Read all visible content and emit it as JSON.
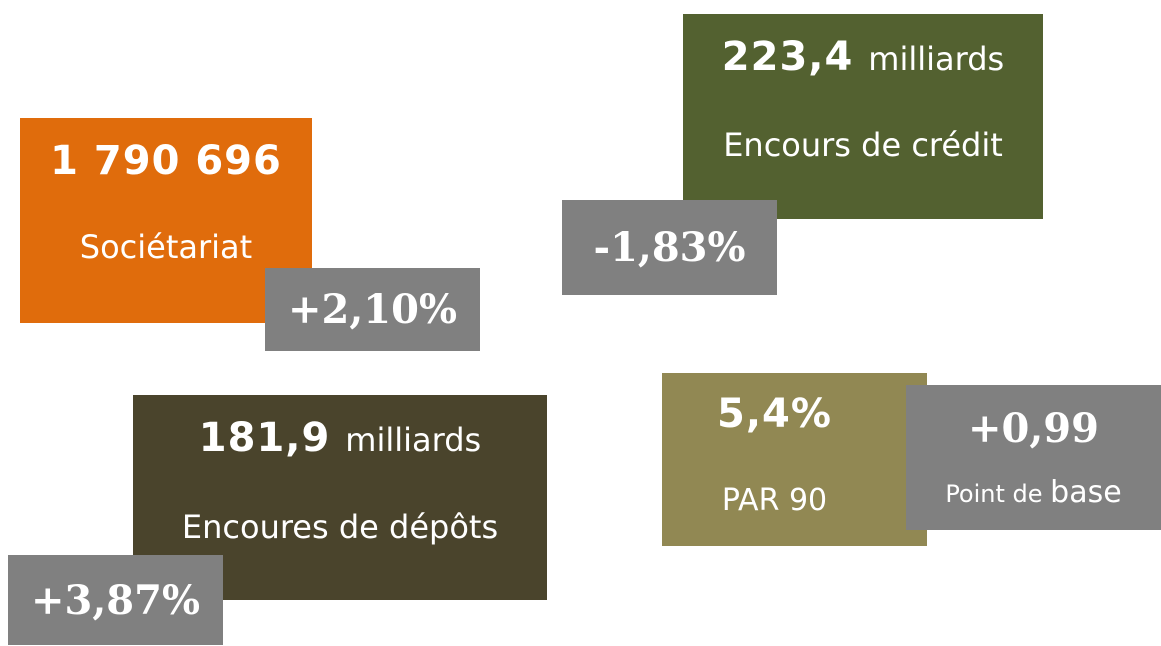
{
  "cards": [
    {
      "value": "1 790 696",
      "label": "Sociétariat",
      "change": "+2,10%"
    },
    {
      "value": "223,4",
      "unit": "milliards",
      "label": "Encours de crédit",
      "change": "-1,83%"
    },
    {
      "value": "181,9",
      "unit": "milliards",
      "label": "Encoures de dépôts",
      "change": "+3,87%"
    },
    {
      "value": "5,4%",
      "label": "PAR 90",
      "change": "+0,99",
      "change_note_small": "Point de",
      "change_note": "base"
    }
  ]
}
